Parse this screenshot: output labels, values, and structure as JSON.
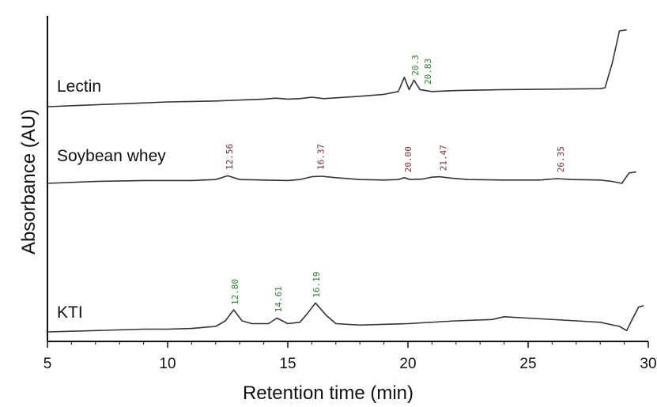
{
  "chart_data": {
    "type": "line",
    "xlabel": "Retention time (min)",
    "ylabel": "Absorbance (AU)",
    "xlim": [
      5,
      30
    ],
    "xticks": [
      5,
      10,
      15,
      20,
      25,
      30
    ],
    "ylim": [
      0,
      1
    ],
    "grid": false,
    "series": [
      {
        "name": "Lectin",
        "line_color": "#333333",
        "label_color": "#2e7d32",
        "peaks": [
          {
            "rt": 20.3,
            "label": "20.3"
          },
          {
            "rt": 20.83,
            "label": "20.83"
          }
        ],
        "points": [
          [
            5,
            0.14
          ],
          [
            8,
            0.17
          ],
          [
            10,
            0.19
          ],
          [
            12,
            0.2
          ],
          [
            14,
            0.22
          ],
          [
            14.5,
            0.23
          ],
          [
            15,
            0.22
          ],
          [
            15.5,
            0.225
          ],
          [
            16,
            0.24
          ],
          [
            16.5,
            0.225
          ],
          [
            18,
            0.25
          ],
          [
            19,
            0.27
          ],
          [
            19.6,
            0.3
          ],
          [
            19.85,
            0.45
          ],
          [
            20.05,
            0.32
          ],
          [
            20.25,
            0.42
          ],
          [
            20.5,
            0.32
          ],
          [
            21,
            0.3
          ],
          [
            22,
            0.31
          ],
          [
            24,
            0.32
          ],
          [
            26,
            0.325
          ],
          [
            28,
            0.33
          ],
          [
            28.2,
            0.34
          ],
          [
            28.5,
            0.6
          ],
          [
            28.8,
            0.94
          ],
          [
            29.1,
            0.95
          ]
        ]
      },
      {
        "name": "Soybean whey",
        "line_color": "#333333",
        "label_color": "#7b2c2c",
        "peaks": [
          {
            "rt": 12.56,
            "label": "12.56"
          },
          {
            "rt": 16.37,
            "label": "16.37"
          },
          {
            "rt": 20.0,
            "label": "20.00"
          },
          {
            "rt": 21.47,
            "label": "21.47"
          },
          {
            "rt": 26.35,
            "label": "26.35"
          }
        ],
        "points": [
          [
            5,
            0.58
          ],
          [
            7,
            0.6
          ],
          [
            9,
            0.61
          ],
          [
            11,
            0.61
          ],
          [
            12,
            0.62
          ],
          [
            12.5,
            0.66
          ],
          [
            13,
            0.62
          ],
          [
            14,
            0.615
          ],
          [
            15,
            0.61
          ],
          [
            15.5,
            0.62
          ],
          [
            16,
            0.65
          ],
          [
            16.4,
            0.655
          ],
          [
            17,
            0.64
          ],
          [
            18,
            0.62
          ],
          [
            19,
            0.615
          ],
          [
            19.6,
            0.62
          ],
          [
            19.85,
            0.64
          ],
          [
            20.1,
            0.62
          ],
          [
            20.6,
            0.625
          ],
          [
            21,
            0.645
          ],
          [
            21.3,
            0.65
          ],
          [
            21.8,
            0.635
          ],
          [
            22.5,
            0.62
          ],
          [
            24,
            0.615
          ],
          [
            25.5,
            0.615
          ],
          [
            26.2,
            0.63
          ],
          [
            26.8,
            0.62
          ],
          [
            28,
            0.615
          ],
          [
            28.5,
            0.6
          ],
          [
            28.9,
            0.58
          ],
          [
            29.2,
            0.69
          ],
          [
            29.5,
            0.7
          ]
        ]
      },
      {
        "name": "KTI",
        "line_color": "#333333",
        "label_color": "#2e7d32",
        "peaks": [
          {
            "rt": 12.8,
            "label": "12.80"
          },
          {
            "rt": 14.61,
            "label": "14.61"
          },
          {
            "rt": 16.19,
            "label": "16.19"
          }
        ],
        "points": [
          [
            5,
            0.12
          ],
          [
            7,
            0.13
          ],
          [
            9,
            0.14
          ],
          [
            10,
            0.14
          ],
          [
            11,
            0.145
          ],
          [
            12,
            0.16
          ],
          [
            12.4,
            0.2
          ],
          [
            12.75,
            0.28
          ],
          [
            13.1,
            0.2
          ],
          [
            13.5,
            0.18
          ],
          [
            14.2,
            0.18
          ],
          [
            14.55,
            0.22
          ],
          [
            15,
            0.18
          ],
          [
            15.5,
            0.19
          ],
          [
            15.8,
            0.25
          ],
          [
            16.15,
            0.33
          ],
          [
            16.6,
            0.24
          ],
          [
            17,
            0.18
          ],
          [
            18,
            0.17
          ],
          [
            20,
            0.18
          ],
          [
            22,
            0.2
          ],
          [
            23.5,
            0.21
          ],
          [
            24,
            0.23
          ],
          [
            25,
            0.22
          ],
          [
            27,
            0.2
          ],
          [
            28,
            0.19
          ],
          [
            28.8,
            0.16
          ],
          [
            29.1,
            0.13
          ],
          [
            29.3,
            0.2
          ],
          [
            29.6,
            0.3
          ],
          [
            29.8,
            0.31
          ]
        ]
      }
    ]
  }
}
